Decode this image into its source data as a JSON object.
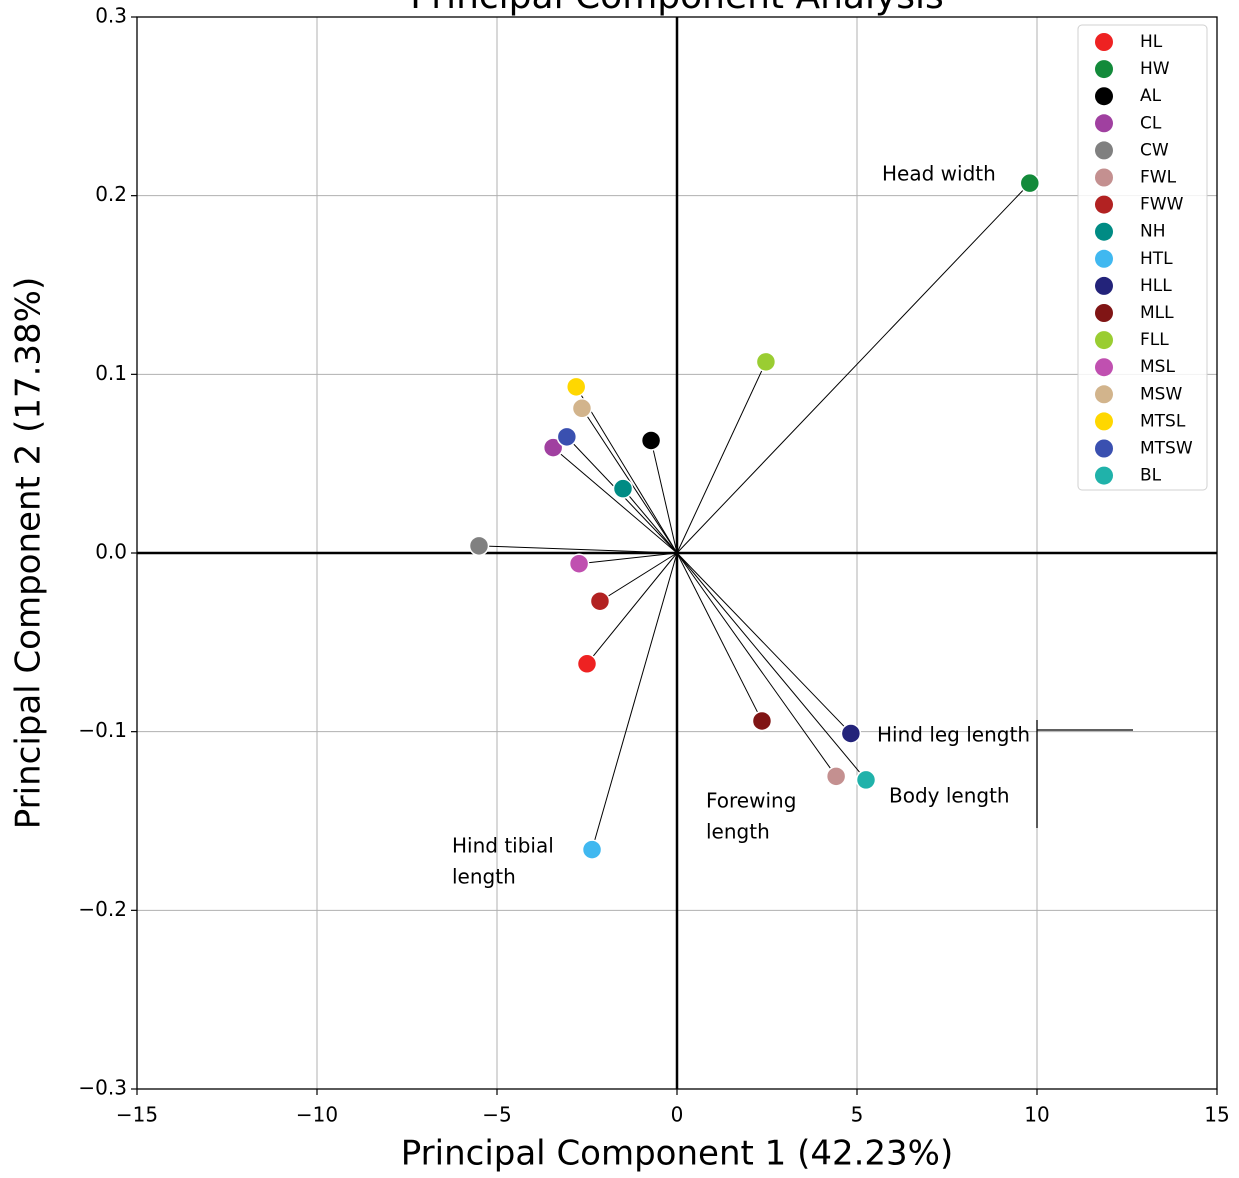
{
  "chart_data": {
    "type": "scatter",
    "title": "Principal Component Analysis",
    "xlabel": "Principal Component 1  (42.23%)",
    "ylabel": "Principal Component 2  (17.38%)",
    "xlim": [
      -15,
      15
    ],
    "ylim": [
      -0.3,
      0.3
    ],
    "xticks": [
      {
        "value": -15,
        "label": "−15"
      },
      {
        "value": -10,
        "label": "−10"
      },
      {
        "value": -5,
        "label": "−5"
      },
      0,
      5,
      10,
      15
    ],
    "yticks": [
      {
        "value": -0.3,
        "label": "−0.3"
      },
      {
        "value": -0.2,
        "label": "−0.2"
      },
      {
        "value": -0.1,
        "label": "−0.1"
      },
      {
        "value": 0,
        "label": "0.0"
      },
      0.1,
      0.2,
      0.3
    ],
    "grid": true,
    "legend": "upper right",
    "series": [
      {
        "name": "HL",
        "color": "#ee2222",
        "x": [
          -2.5
        ],
        "values": [
          -0.062
        ]
      },
      {
        "name": "HW",
        "color": "#138a3a",
        "x": [
          9.8
        ],
        "values": [
          0.207
        ]
      },
      {
        "name": "AL",
        "color": "#000000",
        "x": [
          -0.72
        ],
        "values": [
          0.063
        ]
      },
      {
        "name": "CL",
        "color": "#a040a0",
        "x": [
          -3.44
        ],
        "values": [
          0.059
        ]
      },
      {
        "name": "CW",
        "color": "#808080",
        "x": [
          -5.5
        ],
        "values": [
          0.004
        ]
      },
      {
        "name": "FWL",
        "color": "#c49090",
        "x": [
          4.42
        ],
        "values": [
          -0.125
        ]
      },
      {
        "name": "FWW",
        "color": "#b22222",
        "x": [
          -2.14
        ],
        "values": [
          -0.027
        ]
      },
      {
        "name": "NH",
        "color": "#008b84",
        "x": [
          -1.5
        ],
        "values": [
          0.036
        ]
      },
      {
        "name": "HTL",
        "color": "#40b8f0",
        "x": [
          -2.36
        ],
        "values": [
          -0.166
        ]
      },
      {
        "name": "HLL",
        "color": "#23237a",
        "x": [
          4.83
        ],
        "values": [
          -0.101
        ]
      },
      {
        "name": "MLL",
        "color": "#801515",
        "x": [
          2.36
        ],
        "values": [
          -0.094
        ]
      },
      {
        "name": "FLL",
        "color": "#9acd32",
        "x": [
          2.47
        ],
        "values": [
          0.107
        ]
      },
      {
        "name": "MSL",
        "color": "#c050b0",
        "x": [
          -2.72
        ],
        "values": [
          -0.006
        ]
      },
      {
        "name": "MSW",
        "color": "#d2b48c",
        "x": [
          -2.64
        ],
        "values": [
          0.081
        ]
      },
      {
        "name": "MTSL",
        "color": "#ffd700",
        "x": [
          -2.8
        ],
        "values": [
          0.093
        ]
      },
      {
        "name": "MTSW",
        "color": "#3a50b0",
        "x": [
          -3.06
        ],
        "values": [
          0.065
        ]
      },
      {
        "name": "BL",
        "color": "#20b2aa",
        "x": [
          5.25
        ],
        "values": [
          -0.127
        ]
      }
    ],
    "annotations": [
      [
        "Head width"
      ],
      [
        "Hind leg length"
      ],
      [
        "Body length"
      ],
      [
        "Forewing",
        "length"
      ],
      [
        "Hind tibial",
        "length"
      ]
    ]
  }
}
